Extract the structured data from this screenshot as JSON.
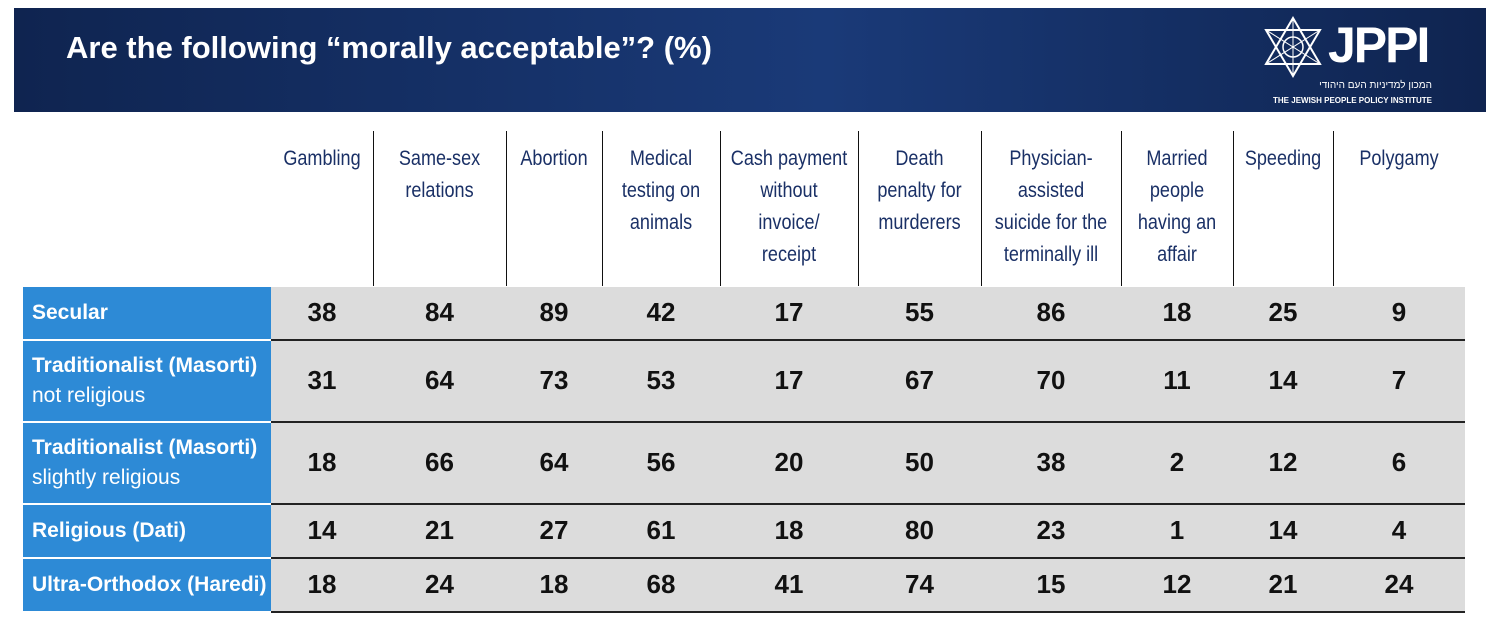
{
  "title": "Are the following “morally acceptable”? (%)",
  "logo": {
    "text": "JPPI",
    "hebrew": "המכון למדיניות העם היהודי",
    "english": "THE JEWISH PEOPLE POLICY INSTITUTE"
  },
  "colors": {
    "header_bg": "#1a3a78",
    "row_label_bg": "#2d8ad6",
    "row_bg": "#dcdcdc",
    "header_text": "#1a3066"
  },
  "chart_data": {
    "type": "table",
    "title": "Are the following “morally acceptable”? (%)",
    "columns": [
      [
        "Gambling"
      ],
      [
        "Same-sex",
        "relations"
      ],
      [
        "Abortion"
      ],
      [
        "Medical",
        "testing on",
        "animals"
      ],
      [
        "Cash payment",
        "without",
        "invoice/",
        "receipt"
      ],
      [
        "Death",
        "penalty for",
        "murderers"
      ],
      [
        "Physician-",
        "assisted",
        "suicide for the",
        "terminally ill"
      ],
      [
        "Married",
        "people",
        "having an",
        "affair"
      ],
      [
        "Speeding"
      ],
      [
        "Polygamy"
      ]
    ],
    "rows": [
      {
        "label": "Secular",
        "sublabel": "",
        "values": [
          38,
          84,
          89,
          42,
          17,
          55,
          86,
          18,
          25,
          9
        ]
      },
      {
        "label": "Traditionalist (Masorti)",
        "sublabel": "not religious",
        "values": [
          31,
          64,
          73,
          53,
          17,
          67,
          70,
          11,
          14,
          7
        ]
      },
      {
        "label": "Traditionalist (Masorti)",
        "sublabel": " slightly religious",
        "values": [
          18,
          66,
          64,
          56,
          20,
          50,
          38,
          2,
          12,
          6
        ]
      },
      {
        "label": "Religious (Dati)",
        "sublabel": "",
        "values": [
          14,
          21,
          27,
          61,
          18,
          80,
          23,
          1,
          14,
          4
        ]
      },
      {
        "label": "Ultra-Orthodox (Haredi)",
        "sublabel": "",
        "values": [
          18,
          24,
          18,
          68,
          41,
          74,
          15,
          12,
          21,
          24
        ]
      }
    ]
  }
}
